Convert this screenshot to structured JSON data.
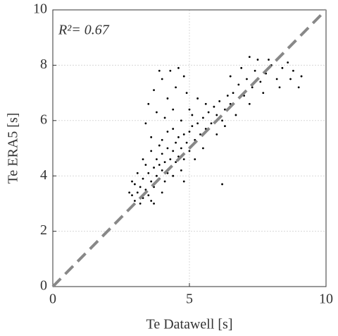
{
  "chart_data": {
    "type": "scatter",
    "xlabel": "Te Datawell [s]",
    "ylabel": "Te ERA5 [s]",
    "annotation": "R²= 0.67",
    "color": "#000000",
    "grid": true,
    "xlim": [
      0,
      10
    ],
    "ylim": [
      0,
      10
    ],
    "xticks": [
      0,
      5,
      10
    ],
    "yticks": [
      0,
      2,
      4,
      6,
      8,
      10
    ],
    "x": [
      2.9,
      3.0,
      3.1,
      3.2,
      3.3,
      3.3,
      3.4,
      3.5,
      3.5,
      3.6,
      3.7,
      3.7,
      3.8,
      3.8,
      3.9,
      3.9,
      4.0,
      4.0,
      4.1,
      4.1,
      4.2,
      4.2,
      4.3,
      4.3,
      4.4,
      4.4,
      4.5,
      4.5,
      4.6,
      4.6,
      4.7,
      4.8,
      4.8,
      4.9,
      5.0,
      5.0,
      5.1,
      5.2,
      5.3,
      5.4,
      5.5,
      5.6,
      5.7,
      5.8,
      5.9,
      6.0,
      6.1,
      6.2,
      6.3,
      6.4,
      6.5,
      6.6,
      6.8,
      7.0,
      7.1,
      7.3,
      7.4,
      7.5,
      7.6,
      7.8,
      8.0,
      8.2,
      8.4,
      8.6,
      8.8,
      9.0,
      9.1,
      7.2,
      6.9,
      6.0,
      5.5,
      5.2,
      4.7,
      3.6,
      3.2,
      3.4,
      3.0,
      2.8,
      3.9,
      4.2,
      3.4,
      3.8,
      3.5,
      3.7,
      4.0,
      4.3,
      4.6,
      4.8,
      4.5,
      4.2,
      4.4,
      4.1,
      3.9,
      3.6,
      5.0,
      5.3,
      4.9,
      6.2,
      4.8,
      4.0,
      3.7,
      2.9,
      3.1,
      3.3,
      3.6,
      4.0,
      4.4,
      4.7,
      5.1,
      5.6,
      6.3,
      6.7,
      7.2,
      7.7,
      8.3,
      8.7,
      6.5,
      7.9
    ],
    "values": [
      3.3,
      3.1,
      3.4,
      3.6,
      3.2,
      3.9,
      3.5,
      4.1,
      3.3,
      3.8,
      4.3,
      3.6,
      4.0,
      4.6,
      3.9,
      4.4,
      4.2,
      4.8,
      3.8,
      4.5,
      4.1,
      5.0,
      4.6,
      4.3,
      4.9,
      4.0,
      5.2,
      4.5,
      4.7,
      5.4,
      5.0,
      5.5,
      4.6,
      5.2,
      5.6,
      4.9,
      5.8,
      5.3,
      5.9,
      5.5,
      6.1,
      5.7,
      6.3,
      5.9,
      6.5,
      6.2,
      6.7,
      6.0,
      6.4,
      6.9,
      6.6,
      7.0,
      7.3,
      6.9,
      7.5,
      7.2,
      7.8,
      8.2,
      7.4,
      7.7,
      8.0,
      7.5,
      7.9,
      8.1,
      7.8,
      7.2,
      7.6,
      8.3,
      7.9,
      5.5,
      5.0,
      4.6,
      4.2,
      3.1,
      3.0,
      4.4,
      3.7,
      3.4,
      5.1,
      5.6,
      5.9,
      6.3,
      6.6,
      7.1,
      7.5,
      7.8,
      7.9,
      7.6,
      7.2,
      6.8,
      6.4,
      6.1,
      7.8,
      5.4,
      6.4,
      6.8,
      7.0,
      3.7,
      3.8,
      3.4,
      3.0,
      3.8,
      4.1,
      4.6,
      4.9,
      5.3,
      5.7,
      6.0,
      6.2,
      6.6,
      5.8,
      6.2,
      6.6,
      7.0,
      7.2,
      7.5,
      7.6,
      8.2
    ]
  }
}
